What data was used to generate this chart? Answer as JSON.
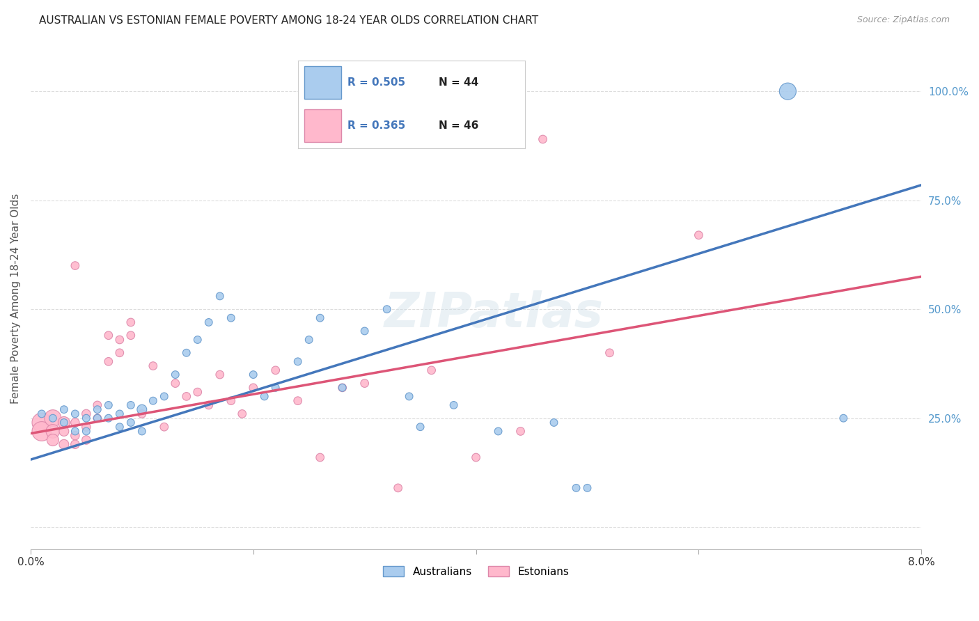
{
  "title": "AUSTRALIAN VS ESTONIAN FEMALE POVERTY AMONG 18-24 YEAR OLDS CORRELATION CHART",
  "source": "Source: ZipAtlas.com",
  "ylabel": "Female Poverty Among 18-24 Year Olds",
  "xmin": 0.0,
  "xmax": 0.08,
  "ymin": -0.05,
  "ymax": 1.1,
  "au_R": 0.505,
  "au_N": 44,
  "est_R": 0.365,
  "est_N": 46,
  "au_color": "#AACCEE",
  "au_edge_color": "#6699CC",
  "au_line_color": "#4477BB",
  "est_color": "#FFB8CC",
  "est_edge_color": "#DD88AA",
  "est_line_color": "#DD5577",
  "legend_label_au": "Australians",
  "legend_label_est": "Estonians",
  "watermark": "ZIPatlas",
  "bg_color": "#FFFFFF",
  "grid_color": "#DDDDDD",
  "title_color": "#222222",
  "legend_r_color": "#4477BB",
  "legend_n_color": "#222222",
  "au_line_x0": 0.0,
  "au_line_y0": 0.155,
  "au_line_x1": 0.08,
  "au_line_y1": 0.785,
  "est_line_x0": 0.0,
  "est_line_y0": 0.215,
  "est_line_x1": 0.08,
  "est_line_y1": 0.575,
  "au_scatter_x": [
    0.001,
    0.002,
    0.003,
    0.003,
    0.004,
    0.004,
    0.005,
    0.005,
    0.006,
    0.006,
    0.007,
    0.007,
    0.008,
    0.008,
    0.009,
    0.009,
    0.01,
    0.01,
    0.011,
    0.012,
    0.013,
    0.014,
    0.015,
    0.016,
    0.017,
    0.018,
    0.02,
    0.021,
    0.022,
    0.024,
    0.025,
    0.026,
    0.028,
    0.03,
    0.032,
    0.034,
    0.035,
    0.038,
    0.042,
    0.047,
    0.049,
    0.05,
    0.068,
    0.073
  ],
  "au_scatter_y": [
    0.26,
    0.25,
    0.27,
    0.24,
    0.26,
    0.22,
    0.25,
    0.22,
    0.27,
    0.25,
    0.28,
    0.25,
    0.26,
    0.23,
    0.28,
    0.24,
    0.27,
    0.22,
    0.29,
    0.3,
    0.35,
    0.4,
    0.43,
    0.47,
    0.53,
    0.48,
    0.35,
    0.3,
    0.32,
    0.38,
    0.43,
    0.48,
    0.32,
    0.45,
    0.5,
    0.3,
    0.23,
    0.28,
    0.22,
    0.24,
    0.09,
    0.09,
    1.0,
    0.25
  ],
  "au_scatter_s": [
    60,
    60,
    60,
    60,
    60,
    60,
    60,
    60,
    60,
    60,
    60,
    60,
    60,
    60,
    60,
    60,
    100,
    60,
    60,
    60,
    60,
    60,
    60,
    60,
    60,
    60,
    60,
    60,
    60,
    60,
    60,
    60,
    60,
    60,
    60,
    60,
    60,
    60,
    60,
    60,
    60,
    60,
    300,
    60
  ],
  "est_scatter_x": [
    0.001,
    0.001,
    0.002,
    0.002,
    0.002,
    0.003,
    0.003,
    0.003,
    0.004,
    0.004,
    0.004,
    0.005,
    0.005,
    0.005,
    0.006,
    0.006,
    0.007,
    0.007,
    0.008,
    0.008,
    0.009,
    0.009,
    0.01,
    0.011,
    0.012,
    0.013,
    0.014,
    0.015,
    0.016,
    0.017,
    0.018,
    0.019,
    0.02,
    0.022,
    0.024,
    0.026,
    0.028,
    0.03,
    0.033,
    0.036,
    0.04,
    0.044,
    0.046,
    0.052,
    0.06,
    0.004
  ],
  "est_scatter_y": [
    0.24,
    0.22,
    0.25,
    0.22,
    0.2,
    0.24,
    0.22,
    0.19,
    0.24,
    0.21,
    0.19,
    0.26,
    0.23,
    0.2,
    0.28,
    0.25,
    0.44,
    0.38,
    0.43,
    0.4,
    0.47,
    0.44,
    0.26,
    0.37,
    0.23,
    0.33,
    0.3,
    0.31,
    0.28,
    0.35,
    0.29,
    0.26,
    0.32,
    0.36,
    0.29,
    0.16,
    0.32,
    0.33,
    0.09,
    0.36,
    0.16,
    0.22,
    0.89,
    0.4,
    0.67,
    0.6
  ],
  "est_scatter_s": [
    400,
    400,
    300,
    200,
    150,
    150,
    100,
    100,
    80,
    80,
    80,
    80,
    80,
    80,
    70,
    70,
    70,
    70,
    70,
    70,
    70,
    70,
    70,
    70,
    70,
    70,
    70,
    70,
    70,
    70,
    70,
    70,
    70,
    70,
    70,
    70,
    70,
    70,
    70,
    70,
    70,
    70,
    70,
    70,
    70,
    70
  ]
}
